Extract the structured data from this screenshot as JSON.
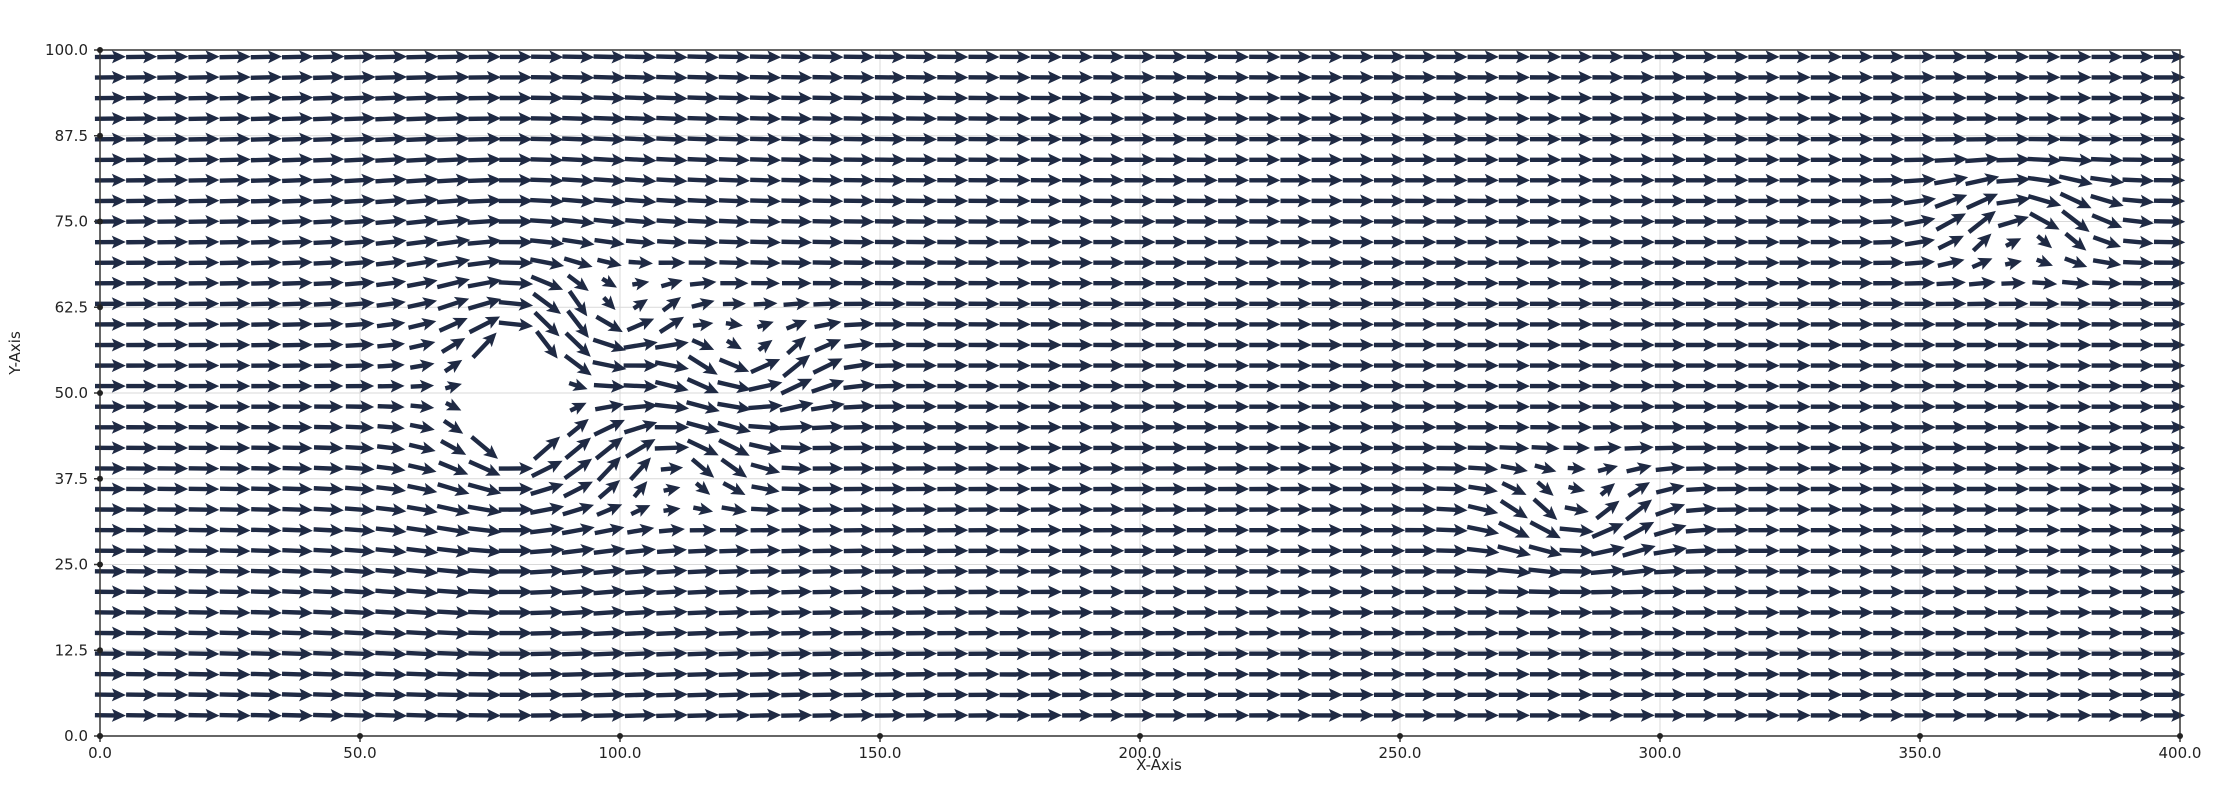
{
  "chart_data": {
    "type": "quiver",
    "title": "",
    "xlabel": "X-Axis",
    "ylabel": "Y-Axis",
    "xlim": [
      0,
      400
    ],
    "ylim": [
      0,
      100
    ],
    "xticks": [
      {
        "value": 0,
        "label": "0.0"
      },
      {
        "value": 50,
        "label": "50.0"
      },
      {
        "value": 100,
        "label": "100.0"
      },
      {
        "value": 150,
        "label": "150.0"
      },
      {
        "value": 200,
        "label": "200.0"
      },
      {
        "value": 250,
        "label": "250.0"
      },
      {
        "value": 300,
        "label": "300.0"
      },
      {
        "value": 350,
        "label": "350.0"
      },
      {
        "value": 400,
        "label": "400.0"
      }
    ],
    "yticks": [
      {
        "value": 0,
        "label": "0.0"
      },
      {
        "value": 12.5,
        "label": "12.5"
      },
      {
        "value": 25,
        "label": "25.0"
      },
      {
        "value": 37.5,
        "label": "37.5"
      },
      {
        "value": 50,
        "label": "50.0"
      },
      {
        "value": 62.5,
        "label": "62.5"
      },
      {
        "value": 75,
        "label": "75.0"
      },
      {
        "value": 87.5,
        "label": "87.5"
      },
      {
        "value": 100,
        "label": "100.0"
      }
    ],
    "grid": true,
    "arrow_color": "#1f2a44",
    "field": {
      "x_start": 2,
      "x_step": 6,
      "x_count": 67,
      "y_start": 3,
      "y_step": 3,
      "y_count": 33,
      "arrow_length": 6,
      "free_stream": {
        "u": 1,
        "v": 0
      },
      "obstacle": {
        "shape": "circle",
        "center": [
          80,
          50
        ],
        "radius": 9
      },
      "wake_vortices": [
        {
          "center": [
            100,
            60
          ],
          "strength": 1
        },
        {
          "center": [
            110,
            40
          ],
          "strength": -1
        },
        {
          "center": [
            125,
            54
          ],
          "strength": 1
        },
        {
          "center": [
            285,
            32
          ],
          "strength": 1
        },
        {
          "center": [
            370,
            75
          ],
          "strength": -1
        }
      ]
    }
  }
}
